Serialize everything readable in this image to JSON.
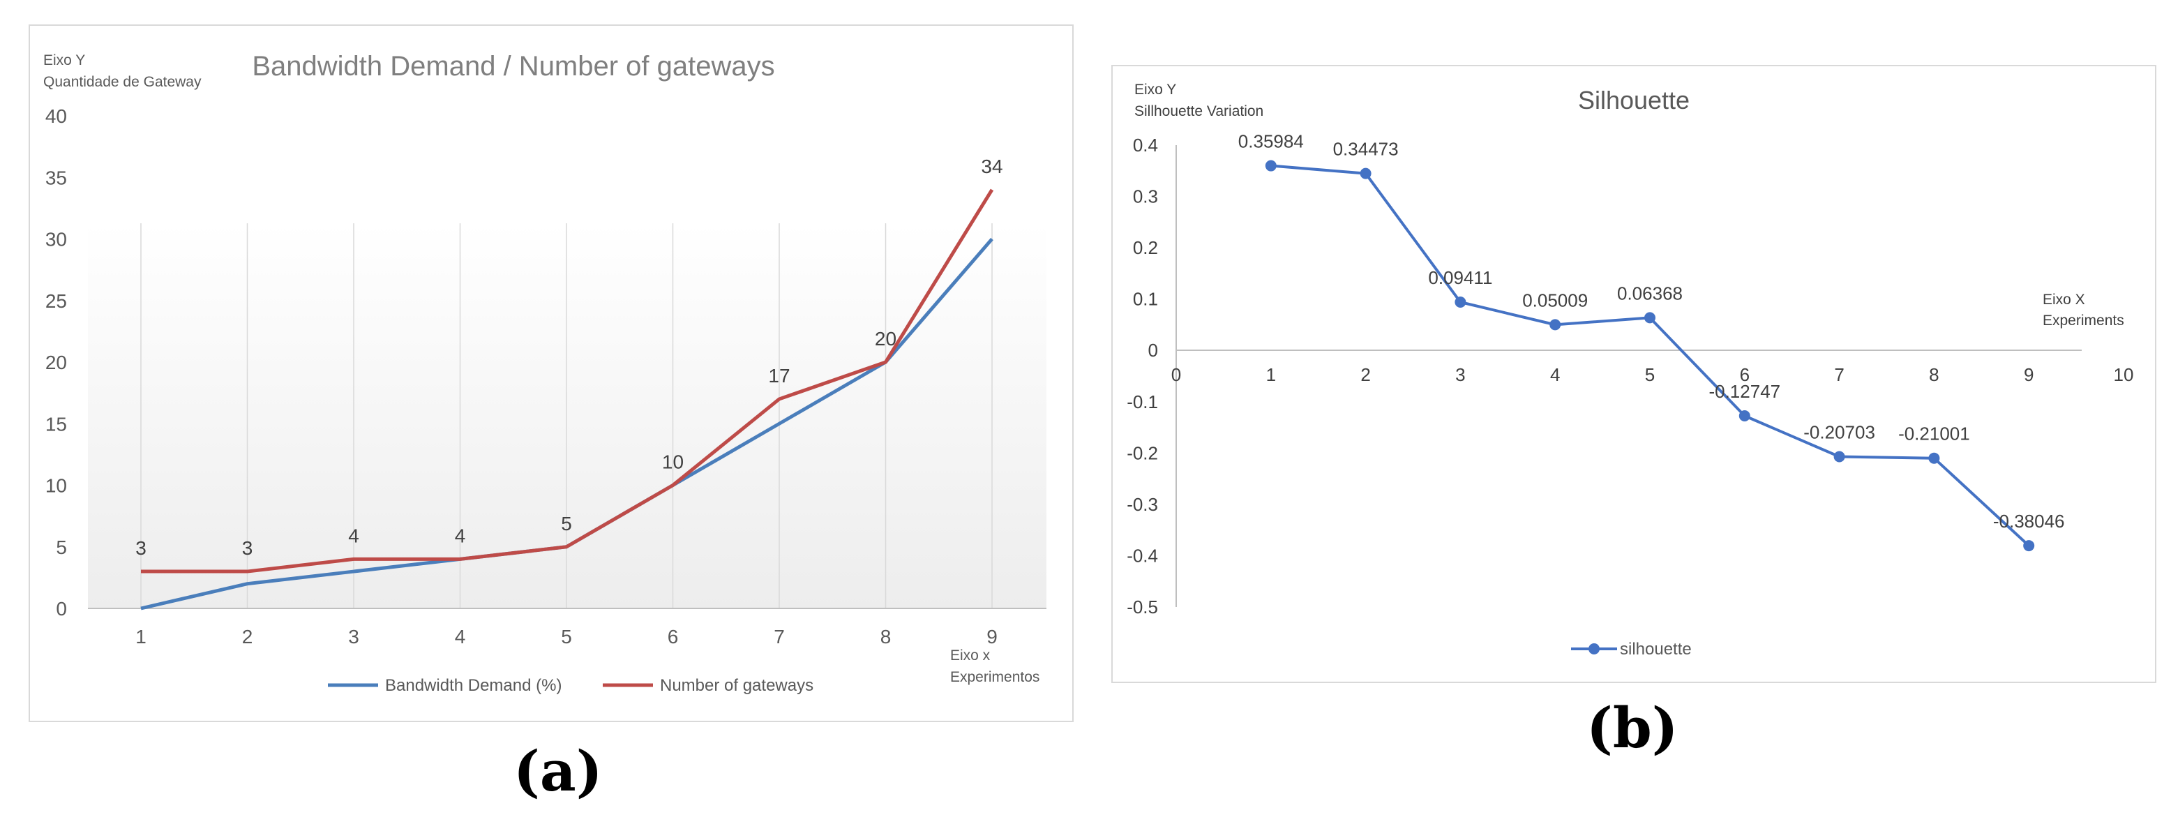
{
  "chart_data": [
    {
      "type": "line",
      "title": "Bandwidth Demand / Number of gateways",
      "ylabel_line1": "Eixo Y",
      "ylabel_line2": "Quantidade de Gateway",
      "xlabel_line1": "Eixo x",
      "xlabel_line2": "Experimentos",
      "categories": [
        "1",
        "2",
        "3",
        "4",
        "5",
        "6",
        "7",
        "8",
        "9"
      ],
      "ylim": [
        0,
        40
      ],
      "yticks": [
        "0",
        "5",
        "10",
        "15",
        "20",
        "25",
        "30",
        "35",
        "40"
      ],
      "series": [
        {
          "name": "Bandwidth Demand (%)",
          "color": "#4a7ebb",
          "values": [
            0,
            2,
            3,
            4,
            5,
            10,
            15,
            20,
            30
          ]
        },
        {
          "name": "Number of gateways",
          "color": "#be4b48",
          "values": [
            3,
            3,
            4,
            4,
            5,
            10,
            17,
            20,
            34
          ],
          "data_labels": [
            "3",
            "3",
            "4",
            "4",
            "5",
            "10",
            "17",
            "20",
            "34"
          ]
        }
      ],
      "legend": "bottom",
      "caption": "(a)"
    },
    {
      "type": "line",
      "title": "Silhouette",
      "ylabel_line1": "Eixo Y",
      "ylabel_line2": "Sillhouette Variation",
      "xlabel_line1": "Eixo X",
      "xlabel_line2": "Experiments",
      "xticks": [
        "0",
        "1",
        "2",
        "3",
        "4",
        "5",
        "6",
        "7",
        "8",
        "9",
        "10"
      ],
      "xlim": [
        0,
        10
      ],
      "ylim": [
        -0.5,
        0.4
      ],
      "yticks": [
        "-0.5",
        "-0.4",
        "-0.3",
        "-0.2",
        "-0.1",
        "0",
        "0.1",
        "0.2",
        "0.3",
        "0.4"
      ],
      "series": [
        {
          "name": "silhouette",
          "color": "#4472c4",
          "x": [
            1,
            2,
            3,
            4,
            5,
            6,
            7,
            8,
            9
          ],
          "values": [
            0.35984,
            0.34473,
            0.09411,
            0.05009,
            0.06368,
            -0.12747,
            -0.20703,
            -0.21001,
            -0.38046
          ],
          "data_labels": [
            "0.35984",
            "0.34473",
            "0.09411",
            "0.05009",
            "0.06368",
            "-0.12747",
            "-0.20703",
            "-0.21001",
            "-0.38046"
          ]
        }
      ],
      "legend": "bottom",
      "caption": "(b)"
    }
  ]
}
